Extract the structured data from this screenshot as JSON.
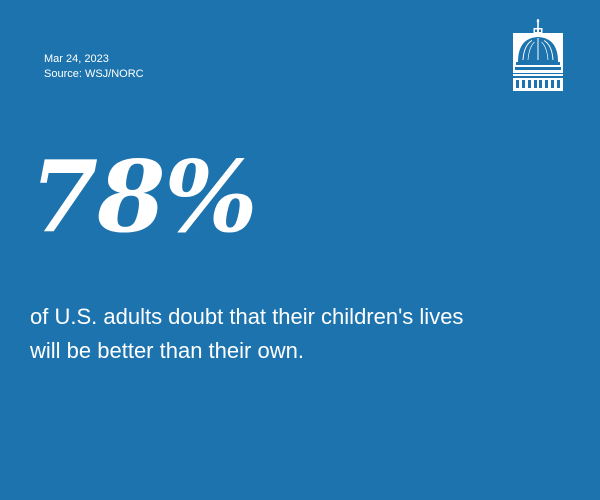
{
  "card": {
    "date": "Mar 24, 2023",
    "source": "Source: WSJ/NORC",
    "statistic": "78%",
    "description_line1": "of U.S. adults doubt that their children's lives",
    "description_line2": "will be better than their own.",
    "background_color": "#1c73ad",
    "text_color": "#ffffff",
    "logo_icon": "capitol-dome-icon"
  }
}
